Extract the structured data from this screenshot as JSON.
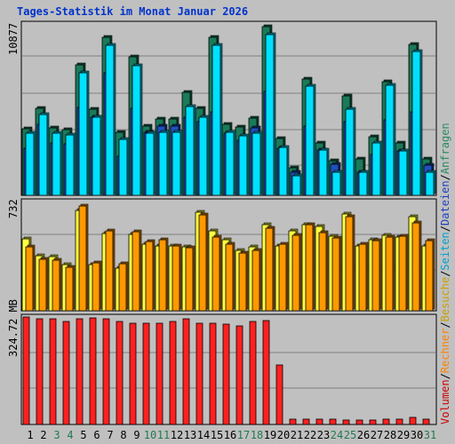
{
  "chart_data": [
    {
      "type": "bar",
      "panel": "top",
      "title": "Tages-Statistik im Monat Januar 2026",
      "ymax_label": "10877",
      "ylim": [
        0,
        10877
      ],
      "categories": [
        "1",
        "2",
        "3",
        "4",
        "5",
        "6",
        "7",
        "8",
        "9",
        "10",
        "11",
        "12",
        "13",
        "14",
        "15",
        "16",
        "17",
        "18",
        "19",
        "20",
        "21",
        "22",
        "23",
        "24",
        "25",
        "26",
        "27",
        "28",
        "29",
        "30",
        "31"
      ],
      "weekend_days": [
        "3",
        "4",
        "10",
        "11",
        "17",
        "18",
        "24",
        "25",
        "31"
      ],
      "series": [
        {
          "name": "Anfragen",
          "color": "#1a7a5a",
          "values": [
            4240,
            5580,
            4320,
            4180,
            8330,
            5470,
            10110,
            4000,
            8820,
            4410,
            4890,
            4890,
            6560,
            5560,
            10110,
            4520,
            4340,
            4920,
            10770,
            3640,
            1730,
            7410,
            3370,
            2230,
            6370,
            2330,
            3740,
            7260,
            3330,
            9640,
            2330
          ]
        },
        {
          "name": "Dateien",
          "color": "#2050c0",
          "values": [
            3020,
            4530,
            3370,
            3300,
            5600,
            4990,
            7800,
            2520,
            5550,
            4000,
            4410,
            4410,
            5000,
            4730,
            5340,
            3950,
            3510,
            4310,
            6640,
            3020,
            1500,
            4430,
            2900,
            2000,
            4730,
            1500,
            2630,
            4830,
            2830,
            5330,
            1920
          ]
        },
        {
          "name": "Seiten",
          "color": "#00e0ff",
          "values": [
            3970,
            5180,
            3950,
            3840,
            7830,
            5000,
            9590,
            3590,
            8290,
            3960,
            4000,
            4000,
            5670,
            5000,
            9580,
            4000,
            3780,
            3960,
            10250,
            3080,
            1230,
            6980,
            2890,
            1500,
            5500,
            1500,
            3370,
            7010,
            2830,
            9200,
            1500
          ]
        }
      ]
    },
    {
      "type": "bar",
      "panel": "middle",
      "ymax_label": "732",
      "ylim": [
        0,
        732
      ],
      "categories": [
        "1",
        "2",
        "3",
        "4",
        "5",
        "6",
        "7",
        "8",
        "9",
        "10",
        "11",
        "12",
        "13",
        "14",
        "15",
        "16",
        "17",
        "18",
        "19",
        "20",
        "21",
        "22",
        "23",
        "24",
        "25",
        "26",
        "27",
        "28",
        "29",
        "30",
        "31"
      ],
      "series": [
        {
          "name": "Besuche",
          "color": "#ffff40",
          "values": [
            485,
            375,
            366,
            310,
            676,
            310,
            524,
            288,
            513,
            452,
            440,
            435,
            430,
            664,
            540,
            477,
            410,
            432,
            580,
            437,
            537,
            580,
            572,
            506,
            651,
            440,
            480,
            512,
            495,
            635,
            437
          ]
        },
        {
          "name": "Rechner",
          "color": "#ff9900",
          "values": [
            430,
            350,
            340,
            292,
            710,
            325,
            540,
            315,
            535,
            470,
            480,
            440,
            425,
            650,
            500,
            447,
            390,
            410,
            560,
            452,
            507,
            584,
            530,
            490,
            637,
            452,
            475,
            500,
            505,
            596,
            475
          ]
        }
      ]
    },
    {
      "type": "bar",
      "panel": "bottom",
      "ymax_label": "324.72 MB",
      "ylim": [
        0,
        324.72
      ],
      "categories": [
        "1",
        "2",
        "3",
        "4",
        "5",
        "6",
        "7",
        "8",
        "9",
        "10",
        "11",
        "12",
        "13",
        "14",
        "15",
        "16",
        "17",
        "18",
        "19",
        "20",
        "21",
        "22",
        "23",
        "24",
        "25",
        "26",
        "27",
        "28",
        "29",
        "30",
        "31"
      ],
      "series": [
        {
          "name": "Volumen",
          "color": "#ff2020",
          "values": [
            324.7,
            320.6,
            318.2,
            311.1,
            318.2,
            323.3,
            318.2,
            311.1,
            306.1,
            306.1,
            305.5,
            311.1,
            318.2,
            306.1,
            306.1,
            302.6,
            298.5,
            311.1,
            314.2,
            180.5,
            15.2,
            15.2,
            16.8,
            15.2,
            13.6,
            13.6,
            13.6,
            15.2,
            15.2,
            21.3,
            15.2
          ]
        }
      ]
    }
  ],
  "legend_right": [
    "Volumen",
    "/",
    "Rechner",
    "/",
    "Besuche",
    "/",
    "Seiten",
    "/",
    "Dateien",
    "/",
    "Anfragen"
  ],
  "legend_colors": {
    "Volumen": "#cc0000",
    "Rechner": "#ff8000",
    "Besuche": "#c8a000",
    "Seiten": "#00a0d0",
    "Dateien": "#2040c0",
    "Anfragen": "#2a8a60",
    "/": "#000000"
  },
  "colors": {
    "title": "#0033cc",
    "weekday": "#000000",
    "weekend": "#207a50",
    "grid": "#808080"
  }
}
